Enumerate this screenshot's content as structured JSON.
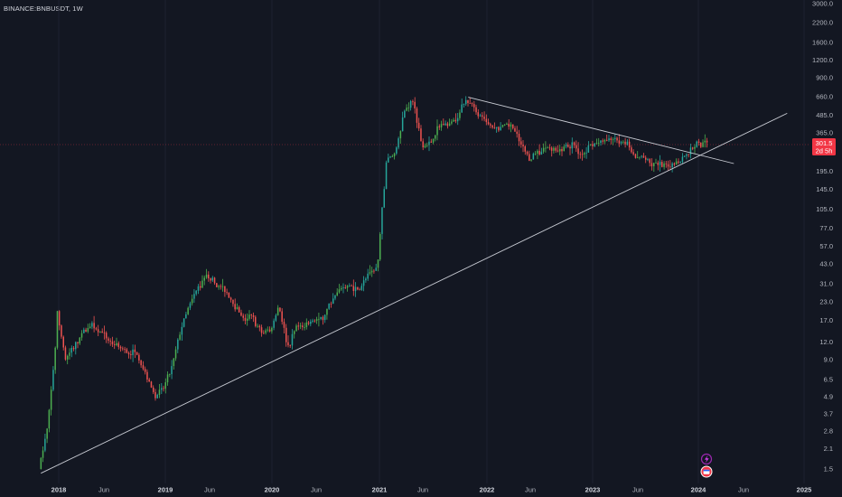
{
  "header": {
    "ticker": "BINANCE:BNBUSDT, 1W"
  },
  "colors": {
    "background": "#131722",
    "up": "#26a69a",
    "up_bright": "#4caf50",
    "down": "#ef5350",
    "trendline": "#c9ccd4",
    "badge": "#f23645",
    "text": "#b2b5be"
  },
  "price_badge": {
    "price": "301.5",
    "countdown": "2d 5h"
  },
  "icons": {
    "flash": "lightning-icon",
    "event": "calendar-flag-icon"
  },
  "chart_data": {
    "type": "candlestick",
    "title": "",
    "interval": "1W",
    "scale": "log",
    "xlabel": "",
    "ylabel": "",
    "ylim": [
      1.3,
      3200
    ],
    "x_ticks": [
      "2018",
      "Jun",
      "2019",
      "Jun",
      "2020",
      "Jun",
      "2021",
      "Jun",
      "2022",
      "Jun",
      "2023",
      "Jun",
      "2024",
      "Jun",
      "2025"
    ],
    "y_ticks": [
      "3000.0",
      "2200.0",
      "1600.0",
      "1200.0",
      "900.0",
      "660.0",
      "485.0",
      "365.0",
      "265.0",
      "195.0",
      "145.0",
      "105.0",
      "77.0",
      "57.0",
      "43.0",
      "31.0",
      "23.0",
      "17.0",
      "12.0",
      "9.0",
      "6.5",
      "4.9",
      "3.7",
      "2.8",
      "2.1",
      "1.5"
    ],
    "price_path": [
      [
        "2017-11",
        1.5
      ],
      [
        "2017-12",
        3
      ],
      [
        "2018-01",
        14
      ],
      [
        "2018-01",
        20
      ],
      [
        "2018-02",
        9
      ],
      [
        "2018-03",
        11
      ],
      [
        "2018-04",
        14
      ],
      [
        "2018-05",
        16
      ],
      [
        "2018-06",
        14
      ],
      [
        "2018-07",
        12
      ],
      [
        "2018-08",
        11
      ],
      [
        "2018-09",
        10
      ],
      [
        "2018-10",
        10
      ],
      [
        "2018-11",
        7
      ],
      [
        "2018-12",
        5
      ],
      [
        "2019-01",
        5.5
      ],
      [
        "2019-02",
        8
      ],
      [
        "2019-03",
        15
      ],
      [
        "2019-04",
        22
      ],
      [
        "2019-05",
        30
      ],
      [
        "2019-06",
        35
      ],
      [
        "2019-07",
        30
      ],
      [
        "2019-08",
        28
      ],
      [
        "2019-09",
        22
      ],
      [
        "2019-10",
        17
      ],
      [
        "2019-11",
        18
      ],
      [
        "2019-12",
        14
      ],
      [
        "2020-01",
        14
      ],
      [
        "2020-02",
        22
      ],
      [
        "2020-03",
        11
      ],
      [
        "2020-04",
        15
      ],
      [
        "2020-05",
        16
      ],
      [
        "2020-06",
        17
      ],
      [
        "2020-07",
        18
      ],
      [
        "2020-08",
        23
      ],
      [
        "2020-09",
        29
      ],
      [
        "2020-10",
        30
      ],
      [
        "2020-11",
        28
      ],
      [
        "2020-12",
        35
      ],
      [
        "2021-01",
        40
      ],
      [
        "2021-02",
        230
      ],
      [
        "2021-03",
        260
      ],
      [
        "2021-04",
        520
      ],
      [
        "2021-05",
        620
      ],
      [
        "2021-06",
        300
      ],
      [
        "2021-07",
        310
      ],
      [
        "2021-08",
        420
      ],
      [
        "2021-09",
        420
      ],
      [
        "2021-10",
        480
      ],
      [
        "2021-11",
        620
      ],
      [
        "2021-12",
        530
      ],
      [
        "2022-01",
        430
      ],
      [
        "2022-02",
        380
      ],
      [
        "2022-03",
        400
      ],
      [
        "2022-04",
        410
      ],
      [
        "2022-05",
        300
      ],
      [
        "2022-06",
        240
      ],
      [
        "2022-07",
        260
      ],
      [
        "2022-08",
        290
      ],
      [
        "2022-09",
        280
      ],
      [
        "2022-10",
        285
      ],
      [
        "2022-11",
        300
      ],
      [
        "2022-12",
        250
      ],
      [
        "2023-01",
        300
      ],
      [
        "2023-02",
        310
      ],
      [
        "2023-03",
        320
      ],
      [
        "2023-04",
        330
      ],
      [
        "2023-05",
        310
      ],
      [
        "2023-06",
        240
      ],
      [
        "2023-07",
        240
      ],
      [
        "2023-08",
        220
      ],
      [
        "2023-09",
        215
      ],
      [
        "2023-10",
        215
      ],
      [
        "2023-11",
        230
      ],
      [
        "2023-12",
        260
      ],
      [
        "2024-01",
        310
      ],
      [
        "2024-02",
        300
      ]
    ],
    "trendlines": [
      {
        "name": "",
        "from": [
          "2017-11",
          1.4
        ],
        "to": [
          "2024-11",
          500
        ]
      },
      {
        "name": "",
        "from": [
          "2021-11",
          650
        ],
        "to": [
          "2024-05",
          220
        ]
      }
    ]
  }
}
